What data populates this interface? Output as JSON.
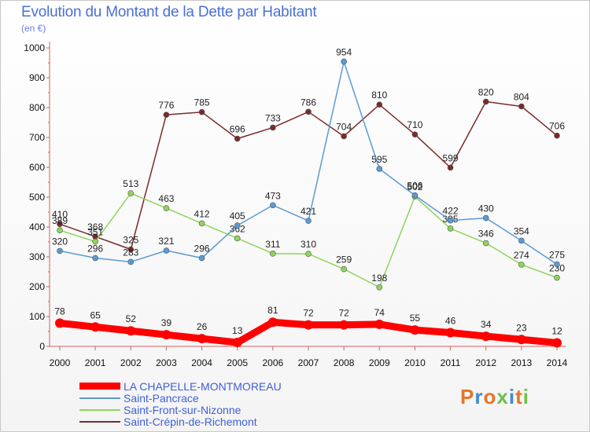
{
  "title": "Evolution du Montant de la Dette par Habitant",
  "unit": "(en €)",
  "logo_text": "Proxiti",
  "chart_data": {
    "type": "line",
    "x": [
      "2000",
      "2001",
      "2002",
      "2003",
      "2004",
      "2005",
      "2006",
      "2007",
      "2008",
      "2009",
      "2010",
      "2011",
      "2012",
      "2013",
      "2014"
    ],
    "ylim": [
      0,
      1000
    ],
    "yticks": [
      "0",
      "100",
      "200",
      "300",
      "400",
      "500",
      "600",
      "700",
      "800",
      "900",
      "1000"
    ],
    "grid": false,
    "legend_position": "bottom-left",
    "series": [
      {
        "name": "Saint-Crépin-de-Richemont",
        "color": "#7a2a2a",
        "values": [
          410,
          368,
          325,
          776,
          785,
          696,
          733,
          786,
          704,
          810,
          710,
          599,
          820,
          804,
          706
        ],
        "labels": [
          "410",
          "368",
          "325",
          "776",
          "785",
          "696",
          "733",
          "786",
          "704",
          "810",
          "710",
          "599",
          "820",
          "804",
          "706"
        ]
      },
      {
        "name": "Saint-Front-sur-Nizonne",
        "color": "#8fd45a",
        "values": [
          389,
          351,
          513,
          463,
          412,
          362,
          311,
          310,
          259,
          198,
          502,
          395,
          346,
          274,
          230
        ],
        "labels": [
          "389",
          "351",
          "513",
          "463",
          "412",
          "362",
          "311",
          "310",
          "259",
          "198",
          "502",
          "395",
          "346",
          "274",
          "230"
        ]
      },
      {
        "name": "Saint-Pancrace",
        "color": "#5a9bd4",
        "values": [
          320,
          296,
          283,
          321,
          296,
          405,
          473,
          421,
          954,
          595,
          506,
          422,
          430,
          354,
          275
        ],
        "labels": [
          "320",
          "296",
          "283",
          "321",
          "296",
          "405",
          "473",
          "421",
          "954",
          "595",
          "506",
          "422",
          "430",
          "354",
          "275"
        ]
      },
      {
        "name": "LA CHAPELLE-MONTMOREAU",
        "color": "#ff0000",
        "values": [
          78,
          65,
          52,
          39,
          26,
          13,
          81,
          72,
          72,
          74,
          55,
          46,
          34,
          23,
          12
        ],
        "labels": [
          "78",
          "65",
          "52",
          "39",
          "26",
          "13",
          "81",
          "72",
          "72",
          "74",
          "55",
          "46",
          "34",
          "23",
          "12"
        ]
      }
    ],
    "legend": [
      {
        "name": "LA CHAPELLE-MONTMOREAU",
        "color": "#ff0000",
        "thick": true
      },
      {
        "name": "Saint-Pancrace",
        "color": "#5a9bd4",
        "thick": false
      },
      {
        "name": "Saint-Front-sur-Nizonne",
        "color": "#8fd45a",
        "thick": false
      },
      {
        "name": "Saint-Crépin-de-Richemont",
        "color": "#7a2a2a",
        "thick": false
      }
    ]
  }
}
